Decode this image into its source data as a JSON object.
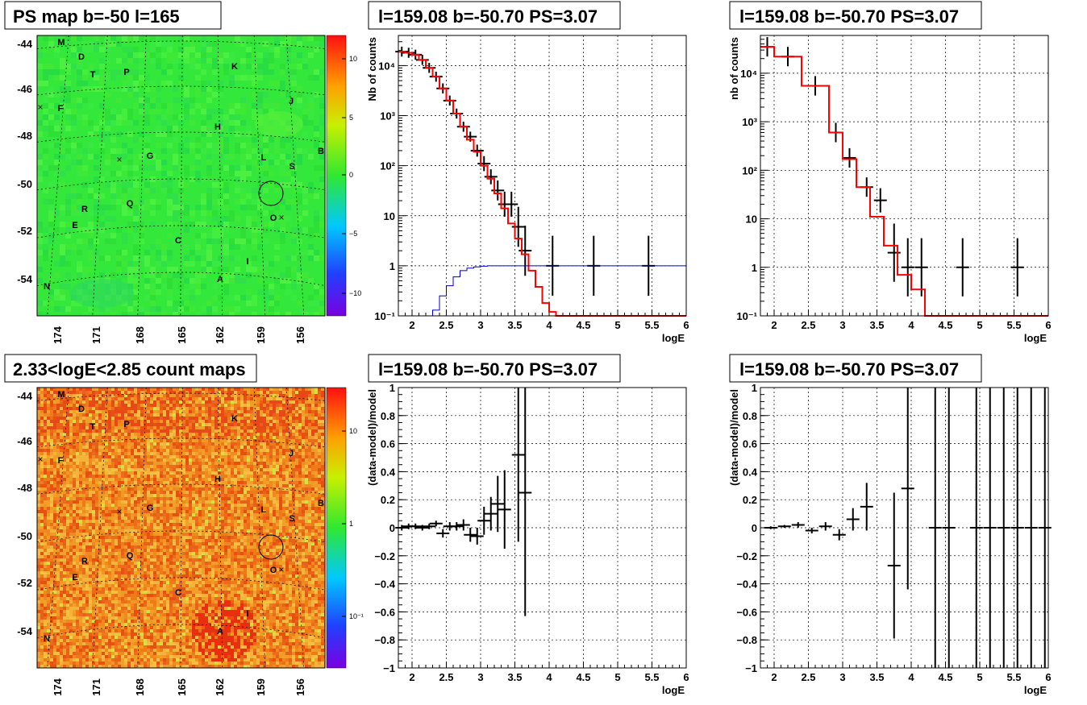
{
  "colors": {
    "data": "#000000",
    "model": "#ff0000",
    "threshold": "#0000cc",
    "map_ps_base": "#33e83a",
    "map_count_base": "#f08a1e"
  },
  "maps": {
    "b_ticks": [
      "-44",
      "-46",
      "-48",
      "-50",
      "-52",
      "-54"
    ],
    "l_ticks": [
      "174",
      "171",
      "168",
      "165",
      "162",
      "159",
      "156"
    ],
    "sources": [
      "M",
      "D",
      "T",
      "P",
      "K",
      "F",
      "J",
      "H",
      "G",
      "L",
      "B",
      "S",
      "R",
      "Q",
      "O",
      "E",
      "C",
      "I",
      "A",
      "N"
    ],
    "ps_map": {
      "title": "PS map b=-50 l=165",
      "colorbar_ticks": [
        "10",
        "5",
        "0",
        "−5",
        "−10"
      ]
    },
    "count_map": {
      "title": "2.33<logE<2.85 count maps",
      "colorbar_ticks": [
        "10",
        "1",
        "10⁻¹"
      ]
    }
  },
  "chart_data": [
    {
      "type": "line",
      "title": "l=159.08 b=-50.70 PS=3.07",
      "xlabel": "logE",
      "ylabel": "Nb of counts",
      "xlim": [
        1.8,
        6.0
      ],
      "ylim": [
        0.1,
        40000
      ],
      "yscale": "log",
      "xticks": [
        "2",
        "2.5",
        "3",
        "3.5",
        "4",
        "4.5",
        "5",
        "5.5",
        "6"
      ],
      "yticks": [
        "10⁻¹",
        "1",
        "10",
        "10²",
        "10³",
        "10⁴"
      ],
      "grid": true,
      "series": [
        {
          "role": "data",
          "x": [
            1.85,
            1.95,
            2.05,
            2.15,
            2.25,
            2.35,
            2.45,
            2.55,
            2.65,
            2.75,
            2.85,
            2.95,
            3.05,
            3.15,
            3.25,
            3.35,
            3.45,
            3.55,
            3.65,
            4.05,
            4.65,
            5.45
          ],
          "y": [
            19000,
            18000,
            16500,
            13000,
            9000,
            6000,
            3500,
            2000,
            1100,
            600,
            380,
            200,
            110,
            60,
            32,
            17,
            17,
            6,
            2,
            1,
            1,
            1
          ],
          "err": [
            0.1,
            0.1,
            0.1,
            0.1,
            0.1,
            0.1,
            0.1,
            0.1,
            0.1,
            0.1,
            0.1,
            0.12,
            0.15,
            0.15,
            0.2,
            0.25,
            0.25,
            0.4,
            0.5,
            0.6,
            0.6,
            0.6
          ]
        },
        {
          "role": "model",
          "x": [
            1.8,
            1.9,
            2.0,
            2.1,
            2.2,
            2.3,
            2.4,
            2.5,
            2.6,
            2.7,
            2.8,
            2.9,
            3.0,
            3.1,
            3.2,
            3.3,
            3.4,
            3.5,
            3.6,
            3.7,
            3.8,
            3.9,
            4.0,
            4.1,
            4.2,
            6.0
          ],
          "y": [
            19000,
            18000,
            16500,
            13000,
            9000,
            6000,
            3500,
            2000,
            1100,
            600,
            330,
            190,
            100,
            55,
            28,
            14,
            7,
            3.5,
            1.7,
            0.8,
            0.38,
            0.18,
            0.12,
            0.1,
            0.1,
            0.1
          ]
        },
        {
          "role": "threshold",
          "x": [
            1.8,
            1.9,
            2.0,
            2.1,
            2.2,
            2.3,
            2.4,
            2.5,
            2.6,
            2.7,
            2.8,
            2.9,
            3.0,
            3.1,
            3.2,
            6.0
          ],
          "y": [
            0.1,
            0.1,
            0.1,
            0.1,
            0.1,
            0.13,
            0.25,
            0.4,
            0.6,
            0.8,
            0.9,
            0.95,
            0.98,
            1.0,
            1.0,
            1.0
          ]
        }
      ]
    },
    {
      "type": "line",
      "title": "l=159.08 b=-50.70 PS=3.07",
      "xlabel": "logE",
      "ylabel": "nb of counts",
      "xlim": [
        1.8,
        6.0
      ],
      "ylim": [
        0.1,
        60000
      ],
      "yscale": "log",
      "xticks": [
        "2",
        "2.5",
        "3",
        "3.5",
        "4",
        "4.5",
        "5",
        "5.5",
        "6"
      ],
      "yticks": [
        "10⁻¹",
        "1",
        "10",
        "10²",
        "10³",
        "10⁴"
      ],
      "grid": true,
      "series": [
        {
          "role": "data",
          "x": [
            1.9,
            2.2,
            2.6,
            2.9,
            3.1,
            3.35,
            3.55,
            3.75,
            3.95,
            4.15,
            4.75,
            5.55
          ],
          "y": [
            35000,
            22000,
            5500,
            600,
            180,
            45,
            24,
            2,
            1,
            1,
            1,
            1
          ],
          "err": [
            0.2,
            0.2,
            0.2,
            0.2,
            0.2,
            0.2,
            0.25,
            0.6,
            0.6,
            0.6,
            0.6,
            0.6
          ]
        },
        {
          "role": "model",
          "x": [
            1.8,
            2.0,
            2.4,
            2.8,
            3.0,
            3.2,
            3.4,
            3.6,
            3.8,
            4.0,
            4.2,
            6.0
          ],
          "y": [
            35000,
            22000,
            5500,
            600,
            170,
            45,
            11,
            2.8,
            0.7,
            0.35,
            0.1,
            0.1
          ]
        }
      ]
    },
    {
      "type": "scatter",
      "title": "l=159.08 b=-50.70 PS=3.07",
      "xlabel": "logE",
      "ylabel": "(data-model)/model",
      "xlim": [
        1.8,
        6.0
      ],
      "ylim": [
        -1,
        1
      ],
      "xticks": [
        "2",
        "2.5",
        "3",
        "3.5",
        "4",
        "4.5",
        "5",
        "5.5",
        "6"
      ],
      "yticks": [
        "−1",
        "−0.8",
        "−0.6",
        "−0.4",
        "−0.2",
        "0",
        "0.2",
        "0.4",
        "0.6",
        "0.8",
        "1"
      ],
      "grid": true,
      "series": [
        {
          "role": "data",
          "x": [
            1.85,
            1.95,
            2.05,
            2.15,
            2.25,
            2.35,
            2.45,
            2.55,
            2.65,
            2.75,
            2.85,
            2.95,
            3.05,
            3.15,
            3.25,
            3.35,
            3.55,
            3.65
          ],
          "y": [
            0.0,
            0.01,
            0.01,
            0.0,
            0.01,
            0.03,
            -0.04,
            0.01,
            0.01,
            0.02,
            -0.05,
            -0.06,
            0.05,
            0.1,
            0.17,
            0.13,
            0.52,
            0.25
          ],
          "err": [
            0.02,
            0.02,
            0.02,
            0.02,
            0.02,
            0.02,
            0.03,
            0.03,
            0.03,
            0.04,
            0.05,
            0.06,
            0.1,
            0.12,
            0.2,
            0.28,
            0.62,
            0.88
          ]
        }
      ]
    },
    {
      "type": "scatter",
      "title": "l=159.08 b=-50.70 PS=3.07",
      "xlabel": "logE",
      "ylabel": "(data-model)/model",
      "xlim": [
        1.8,
        6.0
      ],
      "ylim": [
        -1,
        1
      ],
      "xticks": [
        "2",
        "2.5",
        "3",
        "3.5",
        "4",
        "4.5",
        "5",
        "5.5",
        "6"
      ],
      "yticks": [
        "−1",
        "−0.8",
        "−0.6",
        "−0.4",
        "−0.2",
        "0",
        "0.2",
        "0.4",
        "0.6",
        "0.8",
        "1"
      ],
      "grid": true,
      "series": [
        {
          "role": "data",
          "x": [
            1.95,
            2.15,
            2.35,
            2.55,
            2.75,
            2.95,
            3.15,
            3.35,
            3.75,
            3.95,
            4.35,
            4.55,
            4.95,
            5.15,
            5.35,
            5.55,
            5.75,
            5.95
          ],
          "y": [
            0.0,
            0.01,
            0.02,
            -0.02,
            0.01,
            -0.05,
            0.06,
            0.15,
            -0.27,
            0.28,
            0,
            0,
            0,
            0,
            0,
            0,
            0,
            0
          ],
          "err": [
            0.01,
            0.01,
            0.02,
            0.02,
            0.03,
            0.04,
            0.08,
            0.17,
            0.52,
            0.72,
            1.2,
            1.2,
            1.2,
            1.2,
            1.2,
            1.2,
            1.2,
            1.2
          ]
        }
      ]
    }
  ]
}
